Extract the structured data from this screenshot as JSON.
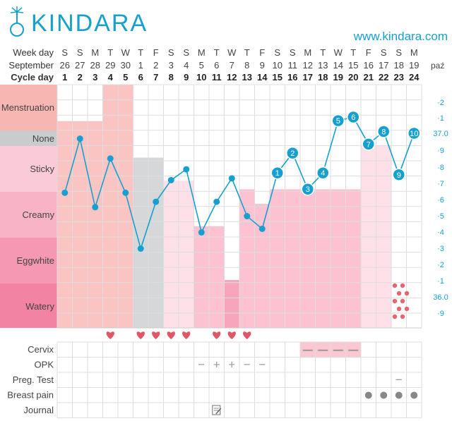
{
  "header": {
    "logo_text": "KINDARA",
    "url": "www.kindara.com"
  },
  "colors": {
    "accent": "#16a0d0",
    "menstruation": "#f9c4c1",
    "grey_band": "#d5d7d8",
    "sticky_band": "#fde0e8",
    "creamy_band": "#fcc2d2",
    "eggwhite_band": "#f7a4bd",
    "heart": "#e05767",
    "cervix": "#fbc8d2",
    "dot_grey": "#888888",
    "water_dot": "#e8646e"
  },
  "chart_data": {
    "type": "line",
    "row_labels": {
      "week_day": "Week day",
      "month": "September",
      "cycle_day": "Cycle day",
      "next_month": "paź"
    },
    "week_days": [
      "S",
      "S",
      "M",
      "T",
      "W",
      "T",
      "F",
      "S",
      "S",
      "M",
      "T",
      "W",
      "T",
      "F",
      "S",
      "S",
      "M",
      "T",
      "W",
      "T",
      "F",
      "S",
      "S",
      "M"
    ],
    "dates": [
      "26",
      "27",
      "28",
      "29",
      "30",
      "1",
      "2",
      "3",
      "4",
      "5",
      "6",
      "7",
      "8",
      "9",
      "10",
      "11",
      "12",
      "13",
      "14",
      "15",
      "16",
      "17",
      "18",
      "19"
    ],
    "cycle_days": [
      "1",
      "2",
      "3",
      "4",
      "5",
      "6",
      "7",
      "8",
      "9",
      "10",
      "11",
      "12",
      "13",
      "14",
      "15",
      "16",
      "17",
      "18",
      "19",
      "20",
      "21",
      "22",
      "23",
      "24"
    ],
    "cervical_fluid_levels": [
      "Menstruation",
      "None",
      "Sticky",
      "Creamy",
      "Eggwhite",
      "Watery"
    ],
    "temperature_axis": [
      "·2",
      "·1",
      "37.0",
      "·9",
      "·8",
      "·7",
      "·6",
      "·5",
      "·4",
      "·3",
      "·2",
      "·1",
      "36.0",
      "·9"
    ],
    "temp_range": [
      35.85,
      37.2
    ],
    "temperatures": [
      36.6,
      36.9,
      36.52,
      36.79,
      36.6,
      36.29,
      36.55,
      36.67,
      36.73,
      36.38,
      36.55,
      36.68,
      36.47,
      36.4,
      36.71,
      36.82,
      36.62,
      36.71,
      37.0,
      37.02,
      36.87,
      36.94,
      36.7,
      36.93
    ],
    "point_labels": [
      "",
      "",
      "",
      "",
      "",
      "",
      "",
      "",
      "",
      "",
      "",
      "",
      "",
      "",
      "1",
      "2",
      "3",
      "4",
      "5",
      "6",
      "7",
      "8",
      "9",
      "10"
    ],
    "fluid_fill": [
      {
        "type": "menstruation",
        "level": 0.15
      },
      {
        "type": "menstruation",
        "level": 0.15
      },
      {
        "type": "menstruation",
        "level": 0.15
      },
      {
        "type": "menstruation",
        "level": 0.0
      },
      {
        "type": "menstruation",
        "level": 0.0
      },
      {
        "type": "grey",
        "level": 0.3
      },
      {
        "type": "grey",
        "level": 0.3
      },
      {
        "type": "sticky",
        "level": 0.395
      },
      {
        "type": "sticky",
        "level": 0.395
      },
      {
        "type": "creamy",
        "level": 0.582
      },
      {
        "type": "creamy",
        "level": 0.582
      },
      {
        "type": "eggwhite",
        "level": 0.803
      },
      {
        "type": "creamy",
        "level": 0.43
      },
      {
        "type": "creamy",
        "level": 0.49
      },
      {
        "type": "creamy",
        "level": 0.43
      },
      {
        "type": "creamy",
        "level": 0.43
      },
      {
        "type": "creamy",
        "level": 0.43
      },
      {
        "type": "creamy",
        "level": 0.43
      },
      {
        "type": "creamy",
        "level": 0.43
      },
      {
        "type": "creamy",
        "level": 0.43
      },
      {
        "type": "sticky",
        "level": 0.25
      },
      {
        "type": "sticky",
        "level": 0.25
      },
      {
        "type": "watery_dots",
        "level": 0.0
      },
      {
        "type": "none",
        "level": 0.0
      }
    ],
    "intercourse_days": [
      4,
      6,
      7,
      8,
      9,
      11,
      12,
      13
    ],
    "sub_rows": {
      "labels": [
        "Cervix",
        "OPK",
        "Preg. Test",
        "Breast pain",
        "Journal"
      ],
      "cervix_days": [
        17,
        18,
        19,
        20
      ],
      "opk": [
        {
          "day": 10,
          "symbol": "−"
        },
        {
          "day": 11,
          "symbol": "+"
        },
        {
          "day": 12,
          "symbol": "+"
        },
        {
          "day": 13,
          "symbol": "−"
        },
        {
          "day": 14,
          "symbol": "−"
        }
      ],
      "preg_test": [
        {
          "day": 23,
          "symbol": "−"
        }
      ],
      "breast_pain_days": [
        21,
        22,
        23,
        24
      ],
      "journal_days": [
        11
      ]
    }
  }
}
